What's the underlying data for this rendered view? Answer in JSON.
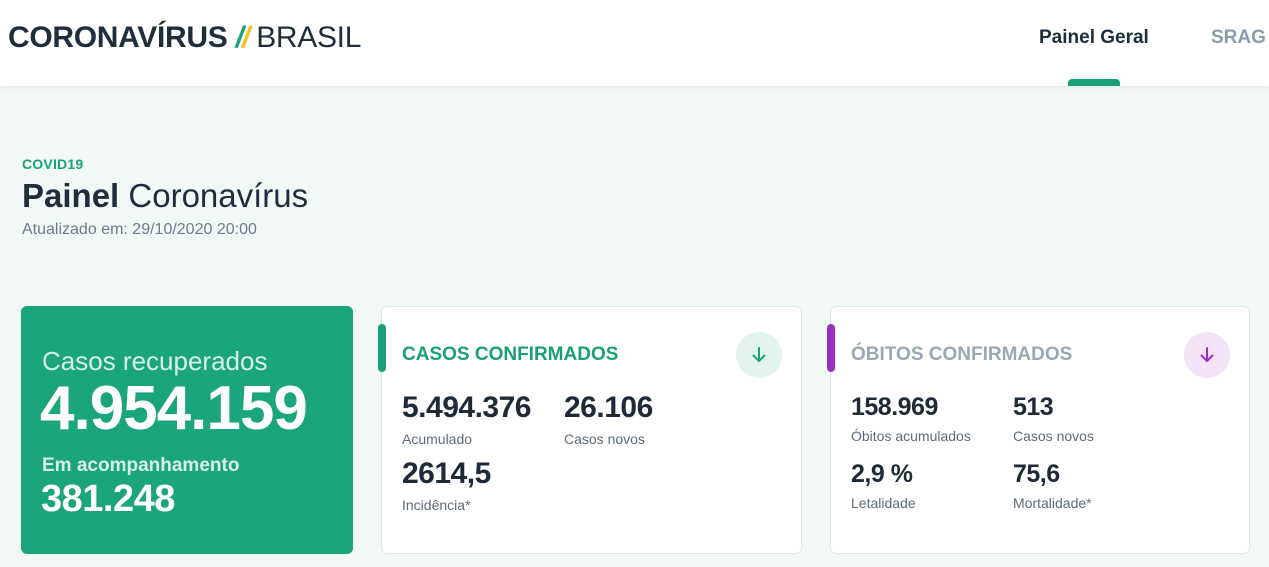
{
  "header": {
    "brand_strong": "CORONAVÍRUS",
    "brand_slash_1": "/",
    "brand_slash_2": "/",
    "brand_light": "BRASIL",
    "nav": [
      {
        "label": "Painel Geral"
      },
      {
        "label": "SRAG"
      }
    ]
  },
  "title": {
    "kicker": "COVID19",
    "strong": "Painel",
    "light": "Coronavírus",
    "updated_label": "Atualizado em:",
    "updated_value": "29/10/2020 20:00"
  },
  "recuperados": {
    "label": "Casos recuperados",
    "value": "4.954.159",
    "acomp_label": "Em acompanhamento",
    "acomp_value": "381.248"
  },
  "casos": {
    "title": "CASOS CONFIRMADOS",
    "accumulated_value": "5.494.376",
    "accumulated_label": "Acumulado",
    "new_value": "26.106",
    "new_label": "Casos novos",
    "incidence_value": "2614,5",
    "incidence_label": "Incidência*",
    "download_icon": "arrow-down-icon"
  },
  "obitos": {
    "title": "ÓBITOS CONFIRMADOS",
    "accumulated_value": "158.969",
    "accumulated_label": "Óbitos acumulados",
    "new_value": "513",
    "new_label": "Casos novos",
    "lethality_value": "2,9 %",
    "lethality_label": "Letalidade",
    "mortality_value": "75,6",
    "mortality_label": "Mortalidade*",
    "download_icon": "arrow-down-icon"
  },
  "colors": {
    "brand_green": "#1aa079",
    "brand_yellow": "#f2c21b",
    "card_green": "#1ba57c",
    "obitos_purple": "#9b2fbf",
    "obitos_title": "#9aa8b5"
  }
}
